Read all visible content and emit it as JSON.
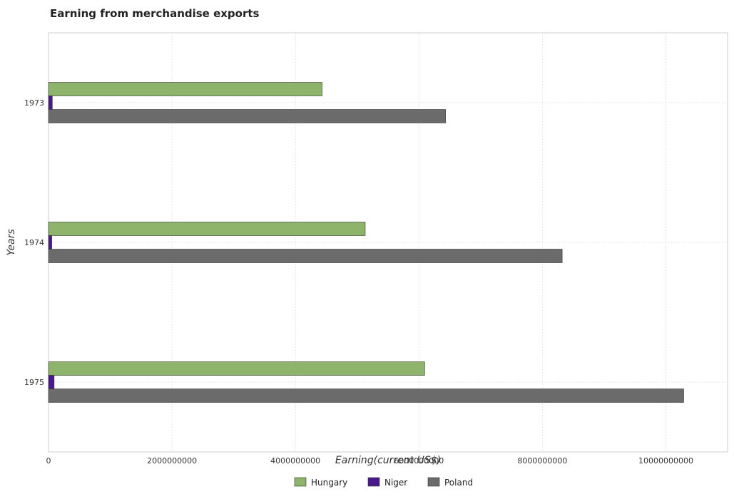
{
  "chart_data": {
    "type": "bar",
    "orientation": "horizontal",
    "title": "Earning from merchandise exports",
    "xlabel": "Earning(current US$)",
    "ylabel": "Years",
    "categories": [
      "1973",
      "1974",
      "1975"
    ],
    "series": [
      {
        "name": "Hungary",
        "color": "#8db46a",
        "values": [
          4432000000,
          5130000000,
          6093000000
        ]
      },
      {
        "name": "Niger",
        "color": "#4a1a8c",
        "values": [
          62000000,
          53000000,
          91000000
        ]
      },
      {
        "name": "Poland",
        "color": "#6b6b6b",
        "values": [
          6432000000,
          8321000000,
          10289000000
        ]
      }
    ],
    "xlim": [
      0,
      11000000000
    ],
    "xticks": [
      0,
      2000000000,
      4000000000,
      6000000000,
      8000000000,
      10000000000
    ],
    "xtick_labels": [
      "0",
      "2000000000",
      "4000000000",
      "6000000000",
      "8000000000",
      "10000000000"
    ],
    "grid": true,
    "legend_position": "bottom"
  }
}
